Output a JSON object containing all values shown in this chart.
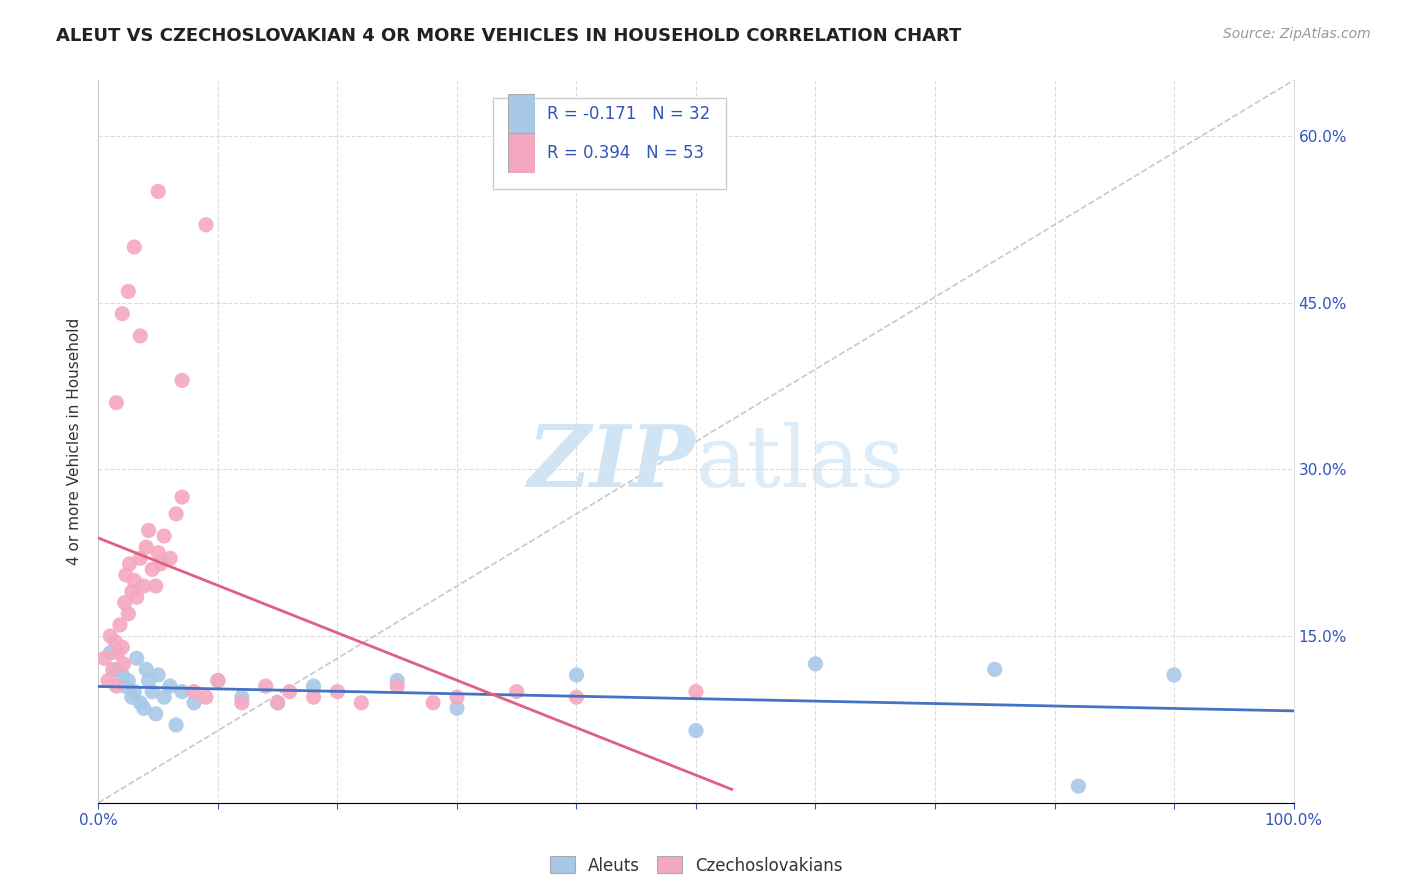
{
  "title": "ALEUT VS CZECHOSLOVAKIAN 4 OR MORE VEHICLES IN HOUSEHOLD CORRELATION CHART",
  "source": "Source: ZipAtlas.com",
  "ylabel": "4 or more Vehicles in Household",
  "aleut_R": -0.171,
  "aleut_N": 32,
  "czech_R": 0.394,
  "czech_N": 53,
  "aleut_color": "#A8C8E8",
  "czech_color": "#F4A8C0",
  "aleut_line_color": "#4472C4",
  "czech_line_color": "#E06080",
  "ref_line_color": "#C8C8C8",
  "legend_text_color": "#3355BB",
  "watermark_color": "#D0E4F4",
  "xlim": [
    0,
    100
  ],
  "ylim": [
    0,
    65
  ],
  "background_color": "#FFFFFF",
  "grid_color": "#DDDDDD",
  "aleut_x": [
    1.0,
    1.5,
    2.0,
    2.2,
    2.5,
    2.8,
    3.0,
    3.2,
    3.5,
    3.8,
    4.0,
    4.2,
    4.5,
    4.8,
    5.0,
    5.5,
    6.0,
    6.5,
    7.0,
    8.0,
    10.0,
    12.0,
    15.0,
    18.0,
    25.0,
    30.0,
    40.0,
    50.0,
    60.0,
    75.0,
    82.0,
    90.0
  ],
  "aleut_y": [
    13.5,
    12.0,
    11.5,
    10.5,
    11.0,
    9.5,
    10.0,
    13.0,
    9.0,
    8.5,
    12.0,
    11.0,
    10.0,
    8.0,
    11.5,
    9.5,
    10.5,
    7.0,
    10.0,
    9.0,
    11.0,
    9.5,
    9.0,
    10.5,
    11.0,
    8.5,
    11.5,
    6.5,
    12.5,
    12.0,
    1.5,
    11.5
  ],
  "czech_x": [
    0.5,
    0.8,
    1.0,
    1.2,
    1.4,
    1.5,
    1.6,
    1.8,
    2.0,
    2.1,
    2.2,
    2.3,
    2.5,
    2.6,
    2.8,
    3.0,
    3.2,
    3.5,
    3.8,
    4.0,
    4.2,
    4.5,
    4.8,
    5.0,
    5.2,
    5.5,
    6.0,
    6.5,
    7.0,
    8.0,
    9.0,
    10.0,
    12.0,
    14.0,
    15.0,
    16.0,
    18.0,
    20.0,
    22.0,
    25.0,
    28.0,
    30.0,
    35.0,
    40.0,
    50.0,
    1.5,
    2.0,
    2.5,
    3.0,
    3.5,
    5.0,
    7.0,
    9.0
  ],
  "czech_y": [
    13.0,
    11.0,
    15.0,
    12.0,
    14.5,
    10.5,
    13.5,
    16.0,
    14.0,
    12.5,
    18.0,
    20.5,
    17.0,
    21.5,
    19.0,
    20.0,
    18.5,
    22.0,
    19.5,
    23.0,
    24.5,
    21.0,
    19.5,
    22.5,
    21.5,
    24.0,
    22.0,
    26.0,
    27.5,
    10.0,
    9.5,
    11.0,
    9.0,
    10.5,
    9.0,
    10.0,
    9.5,
    10.0,
    9.0,
    10.5,
    9.0,
    9.5,
    10.0,
    9.5,
    10.0,
    36.0,
    44.0,
    46.0,
    50.0,
    42.0,
    55.0,
    38.0,
    52.0
  ]
}
